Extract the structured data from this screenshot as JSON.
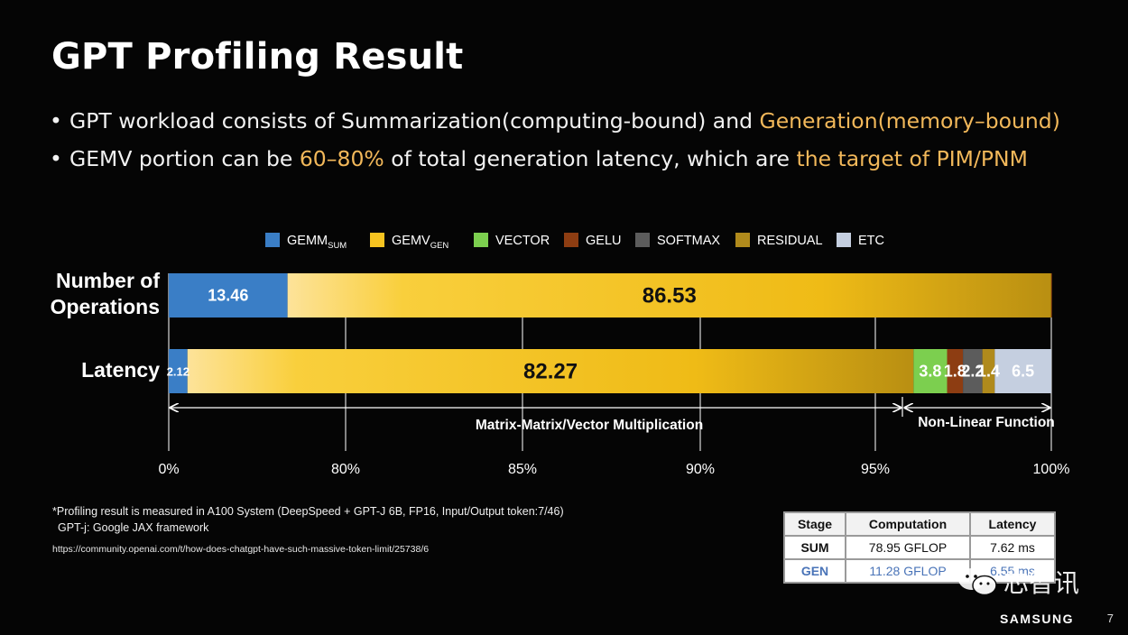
{
  "slide": {
    "title": "GPT Profiling Result",
    "bullets": [
      {
        "text_a": "GPT workload consists of Summarization(computing-bound) and ",
        "highlight_a": "Generation(memory–bound)",
        "text_b": "",
        "highlight_b": ""
      },
      {
        "text_a": "GEMV portion can be ",
        "highlight_a": "60–80%",
        "text_b": " of total generation latency, which are ",
        "highlight_b": "the target of PIM/PNM"
      }
    ],
    "footnote_1": "*Profiling result is measured in A100 System (DeepSpeed + GPT-J 6B, FP16, Input/Output token:7/46)",
    "footnote_2": "GPT-j: Google JAX framework",
    "footnote_url": "https://community.openai.com/t/how-does-chatgpt-have-such-massive-token-limit/25738/6",
    "brand": "SAMSUNG",
    "page_number": "7",
    "watermark": "芯智讯"
  },
  "table": {
    "headers": [
      "Stage",
      "Computation",
      "Latency"
    ],
    "rows": [
      [
        "SUM",
        "78.95 GFLOP",
        "7.62 ms"
      ],
      [
        "GEN",
        "11.28 GFLOP",
        "6.55 ms"
      ]
    ]
  },
  "colors": {
    "highlight": "#f2b85a",
    "GEMM_SUM": "#3a7ec6",
    "GEMV_GEN": "#f6c320",
    "VECTOR": "#7ccf4f",
    "GELU": "#8d3d12",
    "SOFTMAX": "#5c5c5c",
    "RESIDUAL": "#b08a1c",
    "ETC": "#c5cfe0"
  },
  "chart_data": {
    "type": "bar",
    "orientation": "horizontal",
    "stacked": true,
    "categories": [
      "Number of Operations",
      "Latency"
    ],
    "series": [
      {
        "name": "GEMM",
        "sub": "SUM",
        "key": "GEMM_SUM",
        "values": [
          13.46,
          2.12
        ]
      },
      {
        "name": "GEMV",
        "sub": "GEN",
        "key": "GEMV_GEN",
        "values": [
          86.53,
          82.27
        ]
      },
      {
        "name": "VECTOR",
        "sub": "",
        "key": "VECTOR",
        "values": [
          0,
          3.8
        ]
      },
      {
        "name": "GELU",
        "sub": "",
        "key": "GELU",
        "values": [
          0.01,
          1.8
        ]
      },
      {
        "name": "SOFTMAX",
        "sub": "",
        "key": "SOFTMAX",
        "values": [
          0,
          2.2
        ]
      },
      {
        "name": "RESIDUAL",
        "sub": "",
        "key": "RESIDUAL",
        "values": [
          0,
          1.4
        ]
      },
      {
        "name": "ETC",
        "sub": "",
        "key": "ETC",
        "values": [
          0,
          6.5
        ]
      }
    ],
    "data_labels": [
      [
        "13.46",
        "86.53",
        "",
        "",
        "",
        "",
        ""
      ],
      [
        "2.12",
        "82.27",
        "3.8",
        "1.8",
        "2.2",
        "1.4",
        "6.5"
      ]
    ],
    "x_ticks": [
      "0%",
      "80%",
      "85%",
      "90%",
      "95%",
      "100%"
    ],
    "x_tick_values": [
      0,
      80,
      85,
      90,
      95,
      100
    ],
    "axis_note": "x-axis is broken between 0% and 80%",
    "annotations": [
      {
        "text": "Matrix-Matrix/Vector Multiplication",
        "from": 0,
        "to": 96.2
      },
      {
        "text": "Non-Linear Function",
        "from": 96.2,
        "to": 100
      }
    ],
    "legend_position": "top",
    "grid": true
  }
}
